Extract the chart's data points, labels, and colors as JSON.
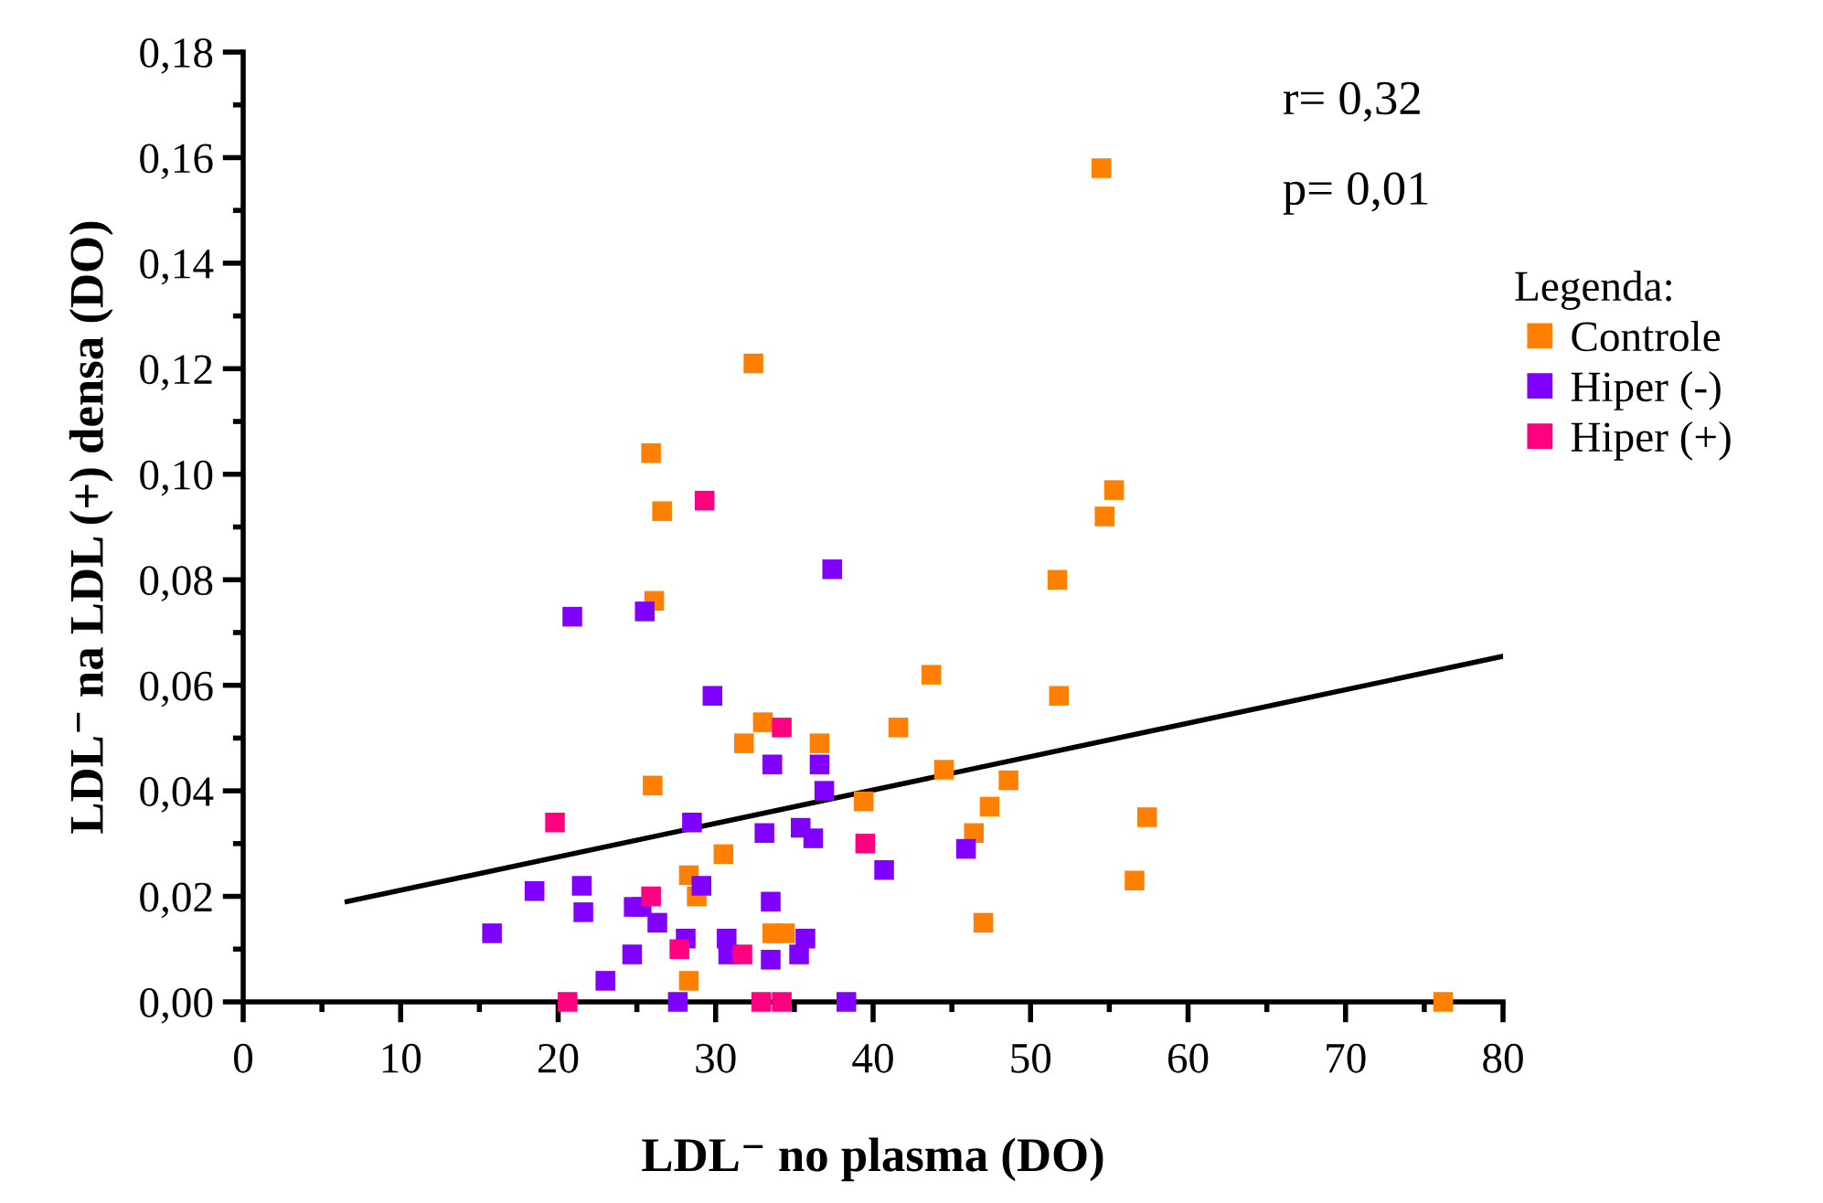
{
  "chart_data": {
    "type": "scatter",
    "xlabel": "LDL⁻ no plasma (DO)",
    "ylabel": "LDL⁻ na LDL (+) densa (DO)",
    "legend_title": "Legenda:",
    "legend": "right",
    "marker": "square",
    "grid": false,
    "annotations": [
      "r= 0,32",
      "p= 0,01"
    ],
    "xlim": [
      0,
      80
    ],
    "ylim": [
      0,
      0.18
    ],
    "xticks": [
      0,
      {
        "value": 5,
        "label": null
      },
      10,
      {
        "value": 15,
        "label": null
      },
      20,
      {
        "value": 25,
        "label": null
      },
      30,
      {
        "value": 35,
        "label": null
      },
      40,
      {
        "value": 45,
        "label": null
      },
      50,
      {
        "value": 55,
        "label": null
      },
      60,
      {
        "value": 65,
        "label": null
      },
      70,
      {
        "value": 75,
        "label": null
      },
      80
    ],
    "yticks": [
      {
        "value": 0,
        "label": "0,00"
      },
      {
        "value": 0.01,
        "label": null
      },
      {
        "value": 0.02,
        "label": "0,02"
      },
      {
        "value": 0.03,
        "label": null
      },
      {
        "value": 0.04,
        "label": "0,04"
      },
      {
        "value": 0.05,
        "label": null
      },
      {
        "value": 0.06,
        "label": "0,06"
      },
      {
        "value": 0.07,
        "label": null
      },
      {
        "value": 0.08,
        "label": "0,08"
      },
      {
        "value": 0.09,
        "label": null
      },
      {
        "value": 0.1,
        "label": "0,10"
      },
      {
        "value": 0.11,
        "label": null
      },
      {
        "value": 0.12,
        "label": "0,12"
      },
      {
        "value": 0.13,
        "label": null
      },
      {
        "value": 0.14,
        "label": "0,14"
      },
      {
        "value": 0.15,
        "label": null
      },
      {
        "value": 0.16,
        "label": "0,16"
      },
      {
        "value": 0.17,
        "label": null
      },
      {
        "value": 0.18,
        "label": "0,18"
      }
    ],
    "series": [
      {
        "name": "Controle",
        "color": "#ff8000",
        "x": [
          54.5,
          32.4,
          25.9,
          55.3,
          26.6,
          54.7,
          26.1,
          51.7,
          43.7,
          51.8,
          41.6,
          33.0,
          31.8,
          36.6,
          44.5,
          26.0,
          48.6,
          39.4,
          47.4,
          57.4,
          46.4,
          30.5,
          56.6,
          28.3,
          28.8,
          33.6,
          34.4,
          47.0,
          28.3,
          76.2
        ],
        "values": [
          0.158,
          0.121,
          0.104,
          0.097,
          0.093,
          0.092,
          0.076,
          0.08,
          0.062,
          0.058,
          0.052,
          0.053,
          0.049,
          0.049,
          0.044,
          0.041,
          0.042,
          0.038,
          0.037,
          0.035,
          0.032,
          0.028,
          0.023,
          0.024,
          0.02,
          0.013,
          0.013,
          0.015,
          0.004,
          0.0
        ]
      },
      {
        "name": "Hiper (-)",
        "color": "#8000ff",
        "x": [
          37.4,
          20.9,
          25.5,
          29.8,
          33.6,
          36.6,
          36.9,
          28.5,
          33.1,
          35.4,
          36.2,
          40.7,
          18.5,
          21.5,
          29.1,
          21.6,
          24.8,
          25.3,
          26.3,
          33.5,
          15.8,
          28.1,
          30.7,
          35.7,
          30.8,
          33.5,
          35.3,
          24.7,
          23.0,
          27.6,
          38.3,
          45.9
        ],
        "values": [
          0.082,
          0.073,
          0.074,
          0.058,
          0.045,
          0.045,
          0.04,
          0.034,
          0.032,
          0.033,
          0.031,
          0.025,
          0.021,
          0.022,
          0.022,
          0.017,
          0.018,
          0.018,
          0.015,
          0.019,
          0.013,
          0.012,
          0.012,
          0.012,
          0.009,
          0.008,
          0.009,
          0.009,
          0.004,
          0.0,
          0.0,
          0.029
        ]
      },
      {
        "name": "Hiper (+)",
        "color": "#ff0080",
        "x": [
          29.3,
          19.8,
          34.2,
          39.5,
          25.9,
          27.7,
          31.7,
          20.6,
          32.9,
          34.2
        ],
        "values": [
          0.095,
          0.034,
          0.052,
          0.03,
          0.02,
          0.01,
          0.009,
          0.0,
          0.0,
          0.0
        ]
      },
      {
        "type": "line",
        "marker": "none",
        "color": "#000000",
        "x": [
          6.6,
          80
        ],
        "values": [
          0.019,
          0.0655
        ]
      }
    ]
  }
}
